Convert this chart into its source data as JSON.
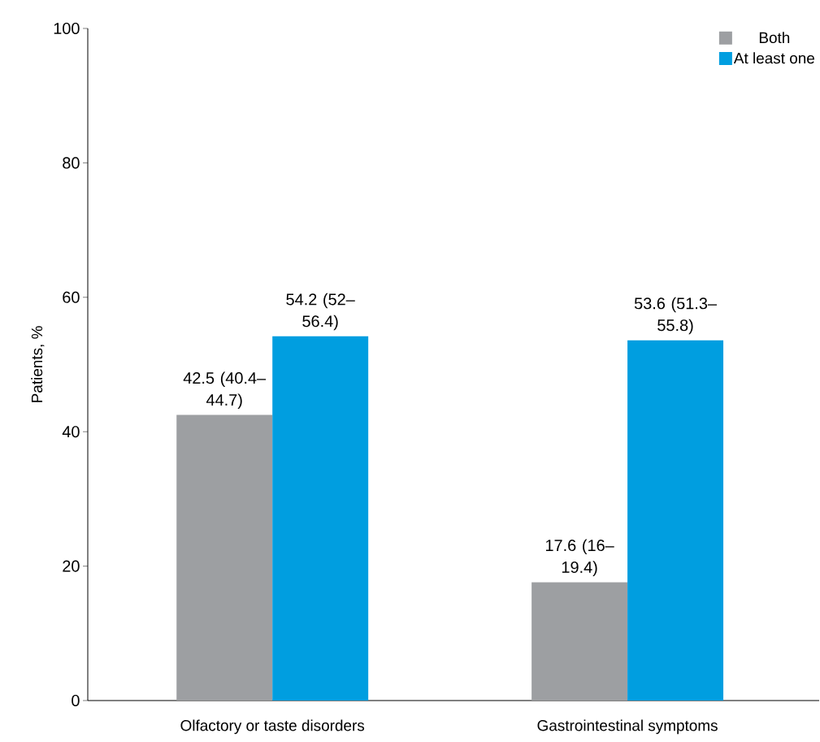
{
  "chart_data": {
    "type": "bar",
    "categories": [
      "Olfactory or taste disorders",
      "Gastrointestinal symptoms"
    ],
    "ylabel": "Patients, %",
    "ylim": [
      0,
      100
    ],
    "yticks": [
      0,
      20,
      40,
      60,
      80,
      100
    ],
    "legend": "top right",
    "series": [
      {
        "name": "Both",
        "color": "#9d9fa2",
        "values": [
          42.5,
          17.6
        ],
        "value_labels": [
          "42.5 (40.4–44.7)",
          "17.6 (16–19.4)"
        ]
      },
      {
        "name": "At least one",
        "color": "#009ee0",
        "values": [
          54.2,
          53.6
        ],
        "value_labels": [
          "54.2 (52–56.4)",
          "53.6 (51.3–55.8)"
        ]
      }
    ]
  }
}
